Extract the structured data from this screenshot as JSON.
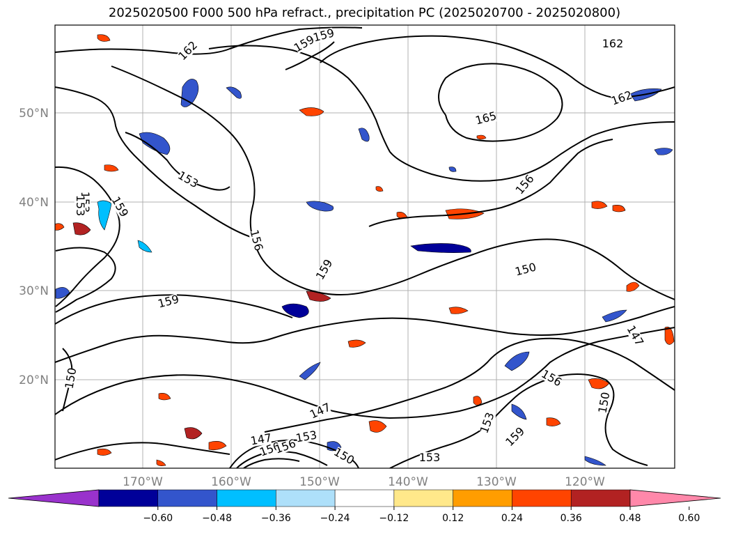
{
  "title": "2025020500 F000 500 hPa refract., precipitation PC (2025020700 - 2025020800)",
  "map": {
    "lat_labels": [
      "50°N",
      "40°N",
      "30°N",
      "20°N"
    ],
    "lon_labels": [
      "170°W",
      "160°W",
      "150°W",
      "140°W",
      "130°W",
      "120°W"
    ],
    "label_color": "#808080",
    "contour_labels": [
      "159",
      "159",
      "162",
      "162",
      "162",
      "165",
      "156",
      "153",
      "153",
      "159",
      "156",
      "159",
      "150",
      "159",
      "150",
      "147",
      "147",
      "150",
      "156",
      "150",
      "153",
      "153",
      "159",
      "147",
      "150",
      "156",
      "153",
      "153"
    ]
  },
  "colorbar": {
    "colors": [
      "#9932cc",
      "#000099",
      "#3355cc",
      "#00bfff",
      "#aee0fa",
      "#ffffff",
      "#ffe88a",
      "#ff9d00",
      "#ff4400",
      "#b22222",
      "#ff88aa"
    ],
    "tick_labels": [
      "−0.60",
      "−0.48",
      "−0.36",
      "−0.24",
      "−0.12",
      "0.12",
      "0.24",
      "0.36",
      "0.48",
      "0.60"
    ]
  }
}
